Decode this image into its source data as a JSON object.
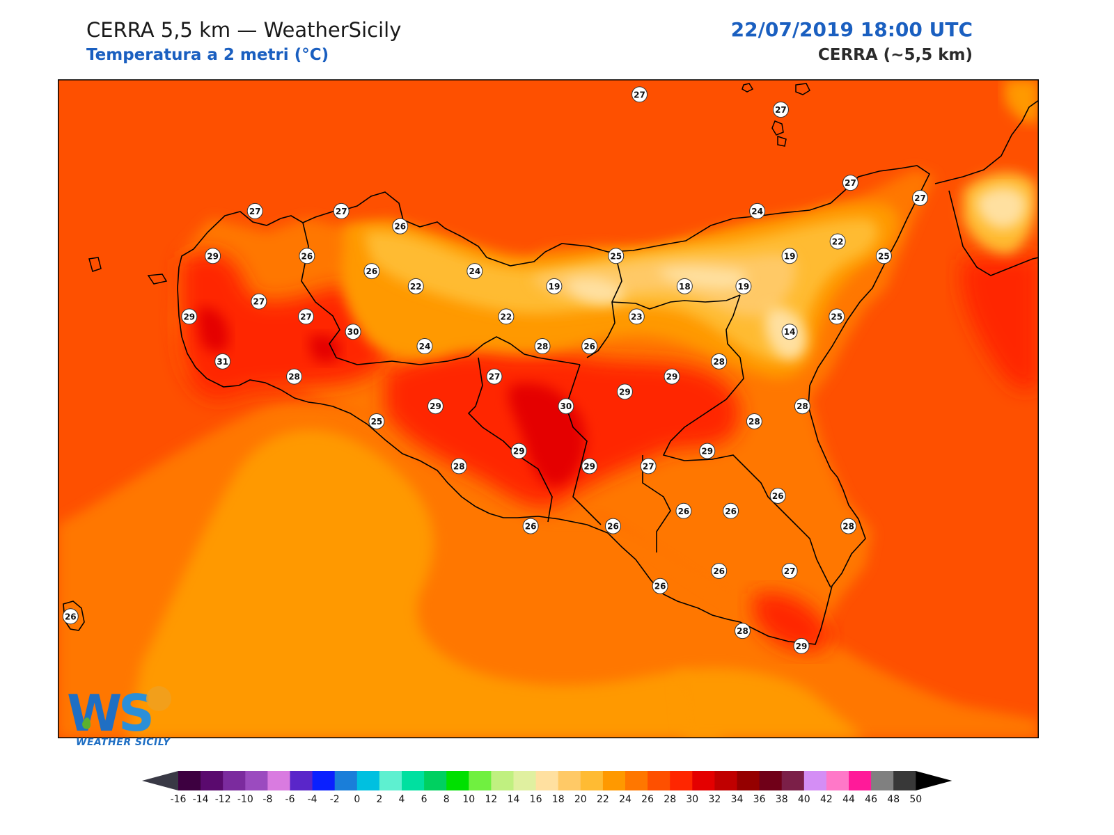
{
  "header": {
    "title": "CERRA 5,5 km — WeatherSicily",
    "subtitle": "Temperatura a 2 metri (°C)",
    "datetime": "22/07/2019 18:00 UTC",
    "model": "CERRA (~5,5 km)"
  },
  "logo": {
    "letters": "WS",
    "text": "WEATHER SICILY"
  },
  "colors": {
    "sea_orange": "#fe5000",
    "field_26": "#ff7700",
    "field_24": "#ff9900",
    "field_22": "#ffbb33",
    "field_20": "#ffc966",
    "field_18": "#ffe0a0",
    "field_28": "#ff2600",
    "field_30": "#e40000",
    "coast": "#000000"
  },
  "colorbar": {
    "ticks": [
      "-16",
      "-14",
      "-12",
      "-10",
      "-8",
      "-6",
      "-4",
      "-2",
      "0",
      "2",
      "4",
      "6",
      "8",
      "10",
      "12",
      "14",
      "16",
      "18",
      "20",
      "22",
      "24",
      "26",
      "28",
      "30",
      "32",
      "34",
      "36",
      "38",
      "40",
      "42",
      "44",
      "46",
      "48",
      "50"
    ],
    "colors": [
      "#3d0040",
      "#5a0a6e",
      "#7b2b9e",
      "#9b4bbf",
      "#d97be0",
      "#5a26c9",
      "#0a20ff",
      "#1a7ed9",
      "#00c0e0",
      "#5ef0d0",
      "#00e0a0",
      "#00d060",
      "#00e000",
      "#70f040",
      "#c0f080",
      "#e0f0a0",
      "#ffe0a0",
      "#ffc966",
      "#ffbb33",
      "#ff9900",
      "#ff7700",
      "#fe5000",
      "#ff2600",
      "#e40000",
      "#c00000",
      "#950000",
      "#700018",
      "#7b1f48",
      "#d48ef5",
      "#ff78c8",
      "#ff1a99",
      "#808080",
      "#383838"
    ],
    "under_color": "#393945",
    "over_color": "#000000"
  },
  "stations": [
    {
      "value": "27",
      "lon": 0.593,
      "lat": 0.023
    },
    {
      "value": "27",
      "lon": 0.737,
      "lat": 0.046
    },
    {
      "value": "27",
      "lon": 0.201,
      "lat": 0.2
    },
    {
      "value": "27",
      "lon": 0.289,
      "lat": 0.2
    },
    {
      "value": "26",
      "lon": 0.349,
      "lat": 0.223
    },
    {
      "value": "27",
      "lon": 0.808,
      "lat": 0.157
    },
    {
      "value": "27",
      "lon": 0.879,
      "lat": 0.18
    },
    {
      "value": "24",
      "lon": 0.713,
      "lat": 0.2
    },
    {
      "value": "29",
      "lon": 0.158,
      "lat": 0.268
    },
    {
      "value": "26",
      "lon": 0.254,
      "lat": 0.268
    },
    {
      "value": "26",
      "lon": 0.32,
      "lat": 0.291
    },
    {
      "value": "24",
      "lon": 0.425,
      "lat": 0.291
    },
    {
      "value": "25",
      "lon": 0.569,
      "lat": 0.268
    },
    {
      "value": "19",
      "lon": 0.746,
      "lat": 0.268
    },
    {
      "value": "22",
      "lon": 0.795,
      "lat": 0.246
    },
    {
      "value": "25",
      "lon": 0.842,
      "lat": 0.268
    },
    {
      "value": "22",
      "lon": 0.365,
      "lat": 0.314
    },
    {
      "value": "19",
      "lon": 0.506,
      "lat": 0.314
    },
    {
      "value": "18",
      "lon": 0.639,
      "lat": 0.314
    },
    {
      "value": "19",
      "lon": 0.699,
      "lat": 0.314
    },
    {
      "value": "27",
      "lon": 0.205,
      "lat": 0.337
    },
    {
      "value": "29",
      "lon": 0.134,
      "lat": 0.36
    },
    {
      "value": "27",
      "lon": 0.253,
      "lat": 0.36
    },
    {
      "value": "22",
      "lon": 0.457,
      "lat": 0.36
    },
    {
      "value": "23",
      "lon": 0.59,
      "lat": 0.36
    },
    {
      "value": "25",
      "lon": 0.794,
      "lat": 0.36
    },
    {
      "value": "30",
      "lon": 0.301,
      "lat": 0.383
    },
    {
      "value": "14",
      "lon": 0.746,
      "lat": 0.383
    },
    {
      "value": "24",
      "lon": 0.374,
      "lat": 0.405
    },
    {
      "value": "28",
      "lon": 0.494,
      "lat": 0.405
    },
    {
      "value": "26",
      "lon": 0.542,
      "lat": 0.405
    },
    {
      "value": "31",
      "lon": 0.168,
      "lat": 0.428
    },
    {
      "value": "28",
      "lon": 0.241,
      "lat": 0.451
    },
    {
      "value": "27",
      "lon": 0.445,
      "lat": 0.451
    },
    {
      "value": "29",
      "lon": 0.626,
      "lat": 0.451
    },
    {
      "value": "28",
      "lon": 0.674,
      "lat": 0.428
    },
    {
      "value": "29",
      "lon": 0.578,
      "lat": 0.474
    },
    {
      "value": "29",
      "lon": 0.385,
      "lat": 0.496
    },
    {
      "value": "30",
      "lon": 0.518,
      "lat": 0.496
    },
    {
      "value": "28",
      "lon": 0.759,
      "lat": 0.496
    },
    {
      "value": "25",
      "lon": 0.325,
      "lat": 0.519
    },
    {
      "value": "28",
      "lon": 0.71,
      "lat": 0.519
    },
    {
      "value": "29",
      "lon": 0.47,
      "lat": 0.564
    },
    {
      "value": "29",
      "lon": 0.662,
      "lat": 0.564
    },
    {
      "value": "28",
      "lon": 0.409,
      "lat": 0.587
    },
    {
      "value": "29",
      "lon": 0.542,
      "lat": 0.587
    },
    {
      "value": "27",
      "lon": 0.602,
      "lat": 0.587
    },
    {
      "value": "26",
      "lon": 0.734,
      "lat": 0.632
    },
    {
      "value": "26",
      "lon": 0.638,
      "lat": 0.655
    },
    {
      "value": "26",
      "lon": 0.686,
      "lat": 0.655
    },
    {
      "value": "26",
      "lon": 0.482,
      "lat": 0.678
    },
    {
      "value": "26",
      "lon": 0.566,
      "lat": 0.678
    },
    {
      "value": "28",
      "lon": 0.806,
      "lat": 0.678
    },
    {
      "value": "26",
      "lon": 0.674,
      "lat": 0.746
    },
    {
      "value": "27",
      "lon": 0.746,
      "lat": 0.746
    },
    {
      "value": "26",
      "lon": 0.614,
      "lat": 0.769
    },
    {
      "value": "26",
      "lon": 0.013,
      "lat": 0.815
    },
    {
      "value": "28",
      "lon": 0.698,
      "lat": 0.837
    },
    {
      "value": "29",
      "lon": 0.758,
      "lat": 0.86
    }
  ]
}
